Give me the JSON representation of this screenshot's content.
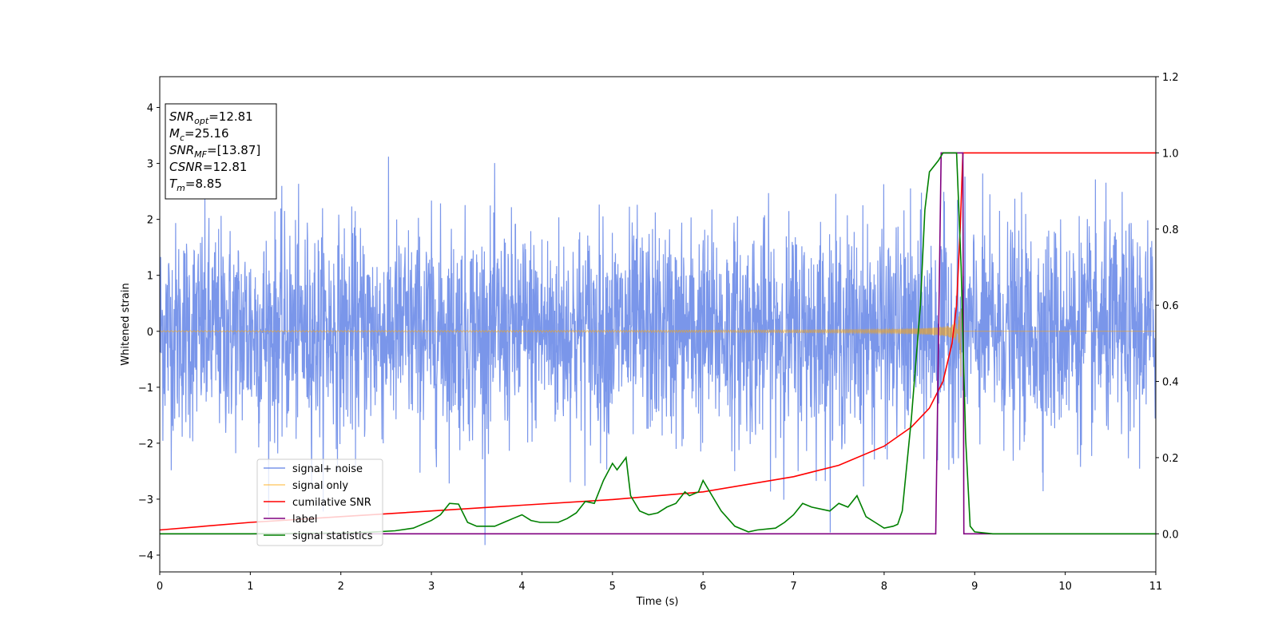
{
  "chart_data": {
    "type": "line",
    "title": "",
    "xlabel": "Time (s)",
    "ylabel": "Whitened strain",
    "xlim": [
      0,
      11
    ],
    "ylim_left": [
      -4.3,
      4.55
    ],
    "ylim_right": [
      -0.1,
      1.2
    ],
    "xticks": [
      "0",
      "1",
      "2",
      "3",
      "4",
      "5",
      "6",
      "7",
      "8",
      "9",
      "10",
      "11"
    ],
    "yticks_left": [
      "−4",
      "−3",
      "−2",
      "−1",
      "0",
      "1",
      "2",
      "3",
      "4"
    ],
    "yticks_right": [
      "0.0",
      "0.2",
      "0.4",
      "0.6",
      "0.8",
      "1.0",
      "1.2"
    ],
    "grid": false,
    "legend_position": "lower-left",
    "annotation": {
      "lines": [
        {
          "sym": "SNR",
          "sub": "opt",
          "val": "=12.81"
        },
        {
          "sym": "M",
          "sub": "c",
          "val": "=25.16"
        },
        {
          "sym": "SNR",
          "sub": "MF",
          "val": "=[13.87]"
        },
        {
          "sym": "CSNR",
          "sub": "",
          "val": "=12.81"
        },
        {
          "sym": "T",
          "sub": "m",
          "val": "=8.85"
        }
      ]
    },
    "series": [
      {
        "name": "signal+ noise",
        "axis": "left",
        "color": "#4169e1",
        "kind": "noise",
        "amplitude_std": 0.95
      },
      {
        "name": "signal only",
        "axis": "left",
        "color": "#ffa500",
        "kind": "chirp",
        "merger_time": 8.85
      },
      {
        "name": "cumilative SNR",
        "axis": "right",
        "color": "#ff0000",
        "x": [
          0,
          1,
          2,
          3,
          4,
          5,
          6,
          7,
          7.5,
          8,
          8.3,
          8.5,
          8.65,
          8.75,
          8.8,
          8.84,
          8.87,
          11
        ],
        "y": [
          0.01,
          0.03,
          0.045,
          0.06,
          0.075,
          0.09,
          0.11,
          0.15,
          0.18,
          0.23,
          0.28,
          0.33,
          0.4,
          0.5,
          0.6,
          0.8,
          1.0,
          1.0
        ]
      },
      {
        "name": "label",
        "axis": "right",
        "color": "#800080",
        "x": [
          0,
          8.57,
          8.63,
          8.87,
          8.88,
          11
        ],
        "y": [
          0,
          0,
          1.0,
          1.0,
          0,
          0
        ]
      },
      {
        "name": "signal statistics",
        "axis": "right",
        "color": "#008000",
        "x": [
          0,
          0.5,
          1,
          1.5,
          2,
          2.3,
          2.6,
          2.8,
          3,
          3.1,
          3.2,
          3.3,
          3.4,
          3.5,
          3.7,
          3.8,
          3.9,
          4.0,
          4.1,
          4.2,
          4.4,
          4.5,
          4.6,
          4.7,
          4.8,
          4.9,
          5.0,
          5.05,
          5.15,
          5.2,
          5.3,
          5.4,
          5.5,
          5.6,
          5.7,
          5.8,
          5.85,
          5.95,
          6.0,
          6.1,
          6.2,
          6.35,
          6.5,
          6.6,
          6.8,
          6.9,
          7.0,
          7.1,
          7.2,
          7.4,
          7.5,
          7.6,
          7.7,
          7.8,
          7.9,
          8.0,
          8.1,
          8.15,
          8.2,
          8.3,
          8.4,
          8.45,
          8.5,
          8.6,
          8.65,
          8.7,
          8.8,
          8.85,
          8.9,
          8.95,
          9.0,
          9.2,
          11
        ],
        "y": [
          0.0,
          0.0,
          0.0,
          0.001,
          0.002,
          0.004,
          0.008,
          0.015,
          0.035,
          0.05,
          0.08,
          0.078,
          0.03,
          0.02,
          0.02,
          0.03,
          0.04,
          0.05,
          0.035,
          0.03,
          0.03,
          0.04,
          0.055,
          0.085,
          0.08,
          0.14,
          0.185,
          0.168,
          0.2,
          0.1,
          0.06,
          0.05,
          0.055,
          0.07,
          0.08,
          0.11,
          0.1,
          0.11,
          0.14,
          0.1,
          0.06,
          0.02,
          0.005,
          0.01,
          0.015,
          0.03,
          0.05,
          0.08,
          0.07,
          0.06,
          0.08,
          0.07,
          0.1,
          0.045,
          0.03,
          0.015,
          0.02,
          0.025,
          0.06,
          0.3,
          0.6,
          0.85,
          0.95,
          0.98,
          1.0,
          1.0,
          1.0,
          0.7,
          0.25,
          0.02,
          0.005,
          0.0,
          0.0
        ]
      }
    ]
  }
}
